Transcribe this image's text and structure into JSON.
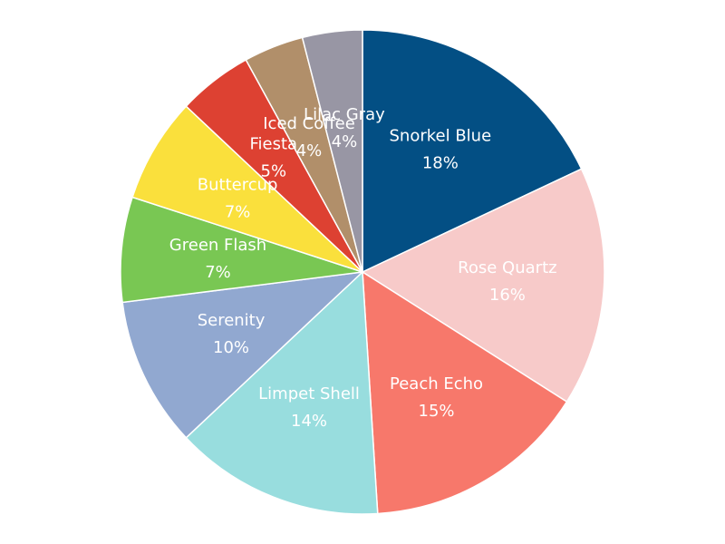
{
  "chart_data": {
    "type": "pie",
    "title": "",
    "start_angle_deg": 0,
    "direction": "clockwise",
    "legend": "none",
    "slices": [
      {
        "label": "Snorkel Blue",
        "value": 18,
        "display": "18%",
        "color": "#034F84"
      },
      {
        "label": "Rose Quartz",
        "value": 16,
        "display": "16%",
        "color": "#F7CAC9"
      },
      {
        "label": "Peach Echo",
        "value": 15,
        "display": "15%",
        "color": "#F7786B"
      },
      {
        "label": "Limpet Shell",
        "value": 14,
        "display": "14%",
        "color": "#98DDDE"
      },
      {
        "label": "Serenity",
        "value": 10,
        "display": "10%",
        "color": "#91A8D0"
      },
      {
        "label": "Green Flash",
        "value": 7,
        "display": "7%",
        "color": "#79C753"
      },
      {
        "label": "Buttercup",
        "value": 7,
        "display": "7%",
        "color": "#FAE03C"
      },
      {
        "label": "Fiesta",
        "value": 5,
        "display": "5%",
        "color": "#DD4132"
      },
      {
        "label": "Iced Coffee",
        "value": 4,
        "display": "4%",
        "color": "#B18F6A"
      },
      {
        "label": "Lilac Gray",
        "value": 4,
        "display": "4%",
        "color": "#9896A4"
      }
    ]
  }
}
